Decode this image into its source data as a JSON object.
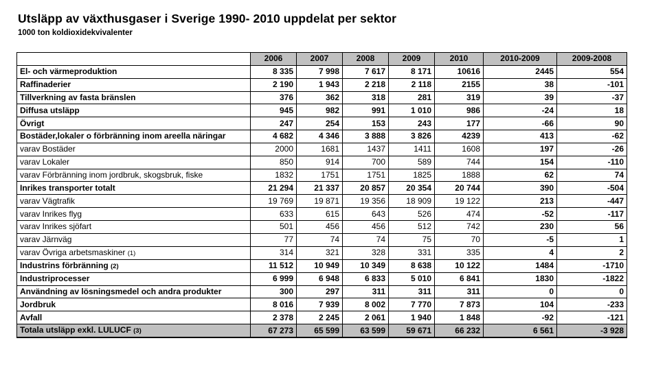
{
  "title": "Utsläpp av växthusgaser i Sverige 1990- 2010 uppdelat per sektor",
  "subtitle": "1000 ton koldioxidekvivalenter",
  "columns": [
    "",
    "2006",
    "2007",
    "2008",
    "2009",
    "2010",
    "2010-2009",
    "2009-2008"
  ],
  "rows": [
    {
      "label": "El- och värmeproduktion",
      "note": "",
      "style": "bold",
      "values": [
        "8 335",
        "7 998",
        "7 617",
        "8 171",
        "10616",
        "2445",
        "554"
      ]
    },
    {
      "label": "Raffinaderier",
      "note": "",
      "style": "bold",
      "values": [
        "2 190",
        "1 943",
        "2 218",
        "2 118",
        "2155",
        "38",
        "-101"
      ]
    },
    {
      "label": "Tillverkning av fasta bränslen",
      "note": "",
      "style": "bold",
      "values": [
        "376",
        "362",
        "318",
        "281",
        "319",
        "39",
        "-37"
      ]
    },
    {
      "label": "Diffusa utsläpp",
      "note": "",
      "style": "bold",
      "values": [
        "945",
        "982",
        "991",
        "1 010",
        "986",
        "-24",
        "18"
      ]
    },
    {
      "label": "Övrigt",
      "note": "",
      "style": "bold",
      "values": [
        "247",
        "254",
        "153",
        "243",
        "177",
        "-66",
        "90"
      ]
    },
    {
      "label": "Bostäder,lokaler o förbränning inom areella näringar",
      "note": "",
      "style": "bold",
      "values": [
        "4 682",
        "4 346",
        "3 888",
        "3 826",
        "4239",
        "413",
        "-62"
      ]
    },
    {
      "label": "varav Bostäder",
      "note": "",
      "style": "normal",
      "values": [
        "2000",
        "1681",
        "1437",
        "1411",
        "1608",
        "197",
        "-26"
      ]
    },
    {
      "label": "varav Lokaler",
      "note": "",
      "style": "normal",
      "values": [
        "850",
        "914",
        "700",
        "589",
        "744",
        "154",
        "-110"
      ]
    },
    {
      "label": "varav Förbränning inom jordbruk, skogsbruk, fiske",
      "note": "",
      "style": "normal",
      "values": [
        "1832",
        "1751",
        "1751",
        "1825",
        "1888",
        "62",
        "74"
      ]
    },
    {
      "label": "Inrikes transporter totalt",
      "note": "",
      "style": "bold",
      "values": [
        "21 294",
        "21 337",
        "20 857",
        "20 354",
        "20 744",
        "390",
        "-504"
      ]
    },
    {
      "label": "varav Vägtrafik",
      "note": "",
      "style": "normal",
      "values": [
        "19 769",
        "19 871",
        "19 356",
        "18 909",
        "19 122",
        "213",
        "-447"
      ]
    },
    {
      "label": "varav Inrikes flyg",
      "note": "",
      "style": "normal",
      "values": [
        "633",
        "615",
        "643",
        "526",
        "474",
        "-52",
        "-117"
      ]
    },
    {
      "label": "varav Inrikes sjöfart",
      "note": "",
      "style": "normal",
      "values": [
        "501",
        "456",
        "456",
        "512",
        "742",
        "230",
        "56"
      ]
    },
    {
      "label": "varav Järnväg",
      "note": "",
      "style": "normal",
      "values": [
        "77",
        "74",
        "74",
        "75",
        "70",
        "-5",
        "1"
      ]
    },
    {
      "label": "varav Övriga arbetsmaskiner",
      "note": "(1)",
      "style": "normal",
      "values": [
        "314",
        "321",
        "328",
        "331",
        "335",
        "4",
        "2"
      ]
    },
    {
      "label": "Industrins förbränning",
      "note": "(2)",
      "style": "bold",
      "values": [
        "11 512",
        "10 949",
        "10 349",
        "8 638",
        "10 122",
        "1484",
        "-1710"
      ]
    },
    {
      "label": "Industriprocesser",
      "note": "",
      "style": "bold",
      "values": [
        "6 999",
        "6 948",
        "6 833",
        "5 010",
        "6 841",
        "1830",
        "-1822"
      ]
    },
    {
      "label": "Användning av lösningsmedel och andra produkter",
      "note": "",
      "style": "bold",
      "values": [
        "300",
        "297",
        "311",
        "311",
        "311",
        "0",
        "0"
      ]
    },
    {
      "label": "Jordbruk",
      "note": "",
      "style": "bold",
      "values": [
        "8 016",
        "7 939",
        "8 002",
        "7 770",
        "7 873",
        "104",
        "-233"
      ]
    },
    {
      "label": "Avfall",
      "note": "",
      "style": "bold",
      "values": [
        "2 378",
        "2 245",
        "2 061",
        "1 940",
        "1 848",
        "-92",
        "-121"
      ]
    },
    {
      "label": "Totala utsläpp exkl. LULUCF",
      "note": "(3)",
      "style": "total",
      "values": [
        "67 273",
        "65 599",
        "63 599",
        "59 671",
        "66 232",
        "6 561",
        "-3 928"
      ]
    }
  ]
}
